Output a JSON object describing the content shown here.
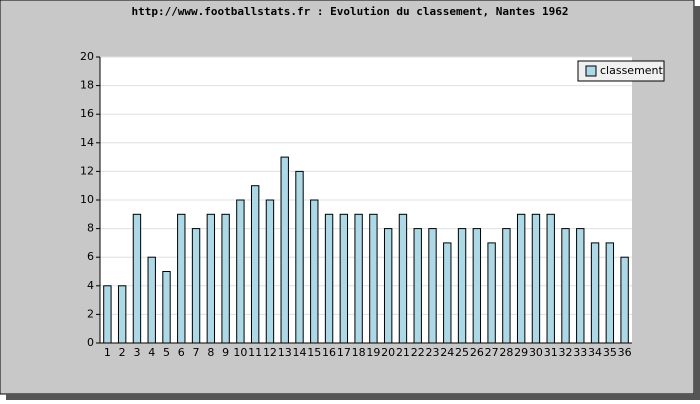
{
  "chart_data": {
    "type": "bar",
    "title": "http://www.footballstats.fr : Evolution du classement, Nantes 1962",
    "categories": [
      "1",
      "2",
      "3",
      "4",
      "5",
      "6",
      "7",
      "8",
      "9",
      "10",
      "11",
      "12",
      "13",
      "14",
      "15",
      "16",
      "17",
      "18",
      "19",
      "20",
      "21",
      "22",
      "23",
      "24",
      "25",
      "26",
      "27",
      "28",
      "29",
      "30",
      "31",
      "32",
      "33",
      "34",
      "35",
      "36"
    ],
    "series": [
      {
        "name": "classement",
        "color": "#add8e6",
        "values": [
          4,
          4,
          9,
          6,
          5,
          9,
          8,
          9,
          9,
          10,
          11,
          10,
          13,
          12,
          10,
          9,
          9,
          9,
          9,
          8,
          9,
          8,
          8,
          7,
          8,
          8,
          7,
          8,
          9,
          9,
          9,
          8,
          8,
          7,
          7,
          6
        ]
      }
    ],
    "ylim": [
      0,
      20
    ],
    "yticks": [
      0,
      2,
      4,
      6,
      8,
      10,
      12,
      14,
      16,
      18,
      20
    ],
    "grid": true,
    "legend": "top-right"
  }
}
